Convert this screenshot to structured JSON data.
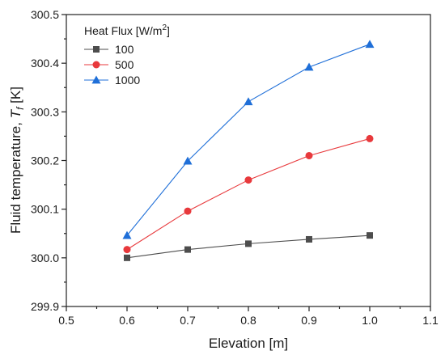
{
  "chart_data": {
    "type": "line",
    "xlabel": "Elevation [m]",
    "ylabel_main": "Fluid temperature, ",
    "ylabel_symbol": "T",
    "ylabel_sub": "f",
    "ylabel_unit": " [K]",
    "xlim": [
      0.5,
      1.1
    ],
    "ylim": [
      299.9,
      300.5
    ],
    "x_ticks": [
      0.5,
      0.6,
      0.7,
      0.8,
      0.9,
      1.0,
      1.1
    ],
    "x_tick_labels": [
      "0.5",
      "0.6",
      "0.7",
      "0.8",
      "0.9",
      "1.0",
      "1.1"
    ],
    "y_ticks": [
      299.9,
      300.0,
      300.1,
      300.2,
      300.3,
      300.4,
      300.5
    ],
    "y_tick_labels": [
      "299.9",
      "300.0",
      "300.1",
      "300.2",
      "300.3",
      "300.4",
      "300.5"
    ],
    "grid": false,
    "legend": {
      "title_main": "Heat Flux [W/m",
      "title_sup": "2",
      "title_end": "]",
      "placement": "top-left"
    },
    "series": [
      {
        "name": "100",
        "color": "#4d4d4d",
        "marker": "square",
        "x": [
          0.6,
          0.7,
          0.8,
          0.9,
          1.0
        ],
        "y": [
          300.0,
          300.017,
          300.029,
          300.038,
          300.046
        ]
      },
      {
        "name": "500",
        "color": "#e8393c",
        "marker": "circle",
        "x": [
          0.6,
          0.7,
          0.8,
          0.9,
          1.0
        ],
        "y": [
          300.017,
          300.096,
          300.16,
          300.21,
          300.245
        ]
      },
      {
        "name": "1000",
        "color": "#1f6fd8",
        "marker": "triangle",
        "x": [
          0.6,
          0.7,
          0.8,
          0.9,
          1.0
        ],
        "y": [
          300.046,
          300.199,
          300.321,
          300.392,
          300.439
        ]
      }
    ]
  }
}
